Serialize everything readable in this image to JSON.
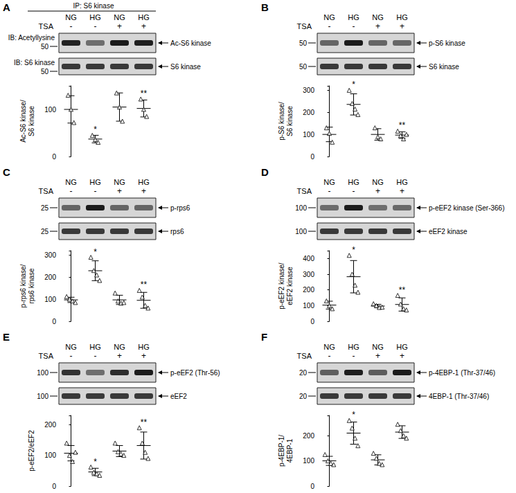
{
  "chart_data": [
    {
      "type": "scatter",
      "title": "A",
      "subtitle": "IP: S6 kinase",
      "categories": [
        "NG",
        "HG",
        "NG",
        "HG"
      ],
      "treatment": {
        "label": "TSA",
        "values": [
          "-",
          "-",
          "+",
          "+"
        ]
      },
      "blots": [
        {
          "label": "IB: Acetyllysine",
          "band": "Ac-S6 kinase",
          "mw": 50
        },
        {
          "label": "IB: S6 kinase",
          "band": "S6 kinase",
          "mw": 50
        }
      ],
      "y_label": "Ac-S6 kinase/\nS6 kinase",
      "values": [
        [
          130,
          100,
          72
        ],
        [
          45,
          36,
          30
        ],
        [
          135,
          105,
          75
        ],
        [
          122,
          100,
          85
        ]
      ],
      "mean": [
        100,
        37,
        105,
        102
      ],
      "sd": [
        29,
        8,
        30,
        18
      ],
      "ylim": [
        0,
        150
      ],
      "yticks": [
        0,
        100
      ],
      "tick_labels": "y",
      "marker": "triangle",
      "color": "#000000",
      "annotations": [
        {
          "category": 1,
          "text": "*"
        },
        {
          "category": 3,
          "text": "**"
        }
      ]
    },
    {
      "type": "scatter",
      "title": "B",
      "categories": [
        "NG",
        "HG",
        "NG",
        "HG"
      ],
      "treatment": {
        "label": "TSA",
        "values": [
          "-",
          "-",
          "+",
          "+"
        ]
      },
      "blots": [
        {
          "band": "p-S6 kinase",
          "mw": 50
        },
        {
          "band": "S6 kinase",
          "mw": 50
        }
      ],
      "y_label": "p-S6 kinase/\nS6 kinase",
      "values": [
        [
          130,
          105,
          65
        ],
        [
          300,
          240,
          215,
          190
        ],
        [
          130,
          90,
          80
        ],
        [
          115,
          95,
          80,
          100
        ]
      ],
      "mean": [
        100,
        236,
        100,
        97
      ],
      "sd": [
        33,
        48,
        26,
        15
      ],
      "ylim": [
        0,
        320
      ],
      "yticks": [
        0,
        100,
        200,
        300
      ],
      "tick_labels": "y",
      "marker": "triangle",
      "color": "#000000",
      "annotations": [
        {
          "category": 1,
          "text": "*"
        },
        {
          "category": 3,
          "text": "**"
        }
      ]
    },
    {
      "type": "scatter",
      "title": "C",
      "categories": [
        "NG",
        "HG",
        "NG",
        "HG"
      ],
      "treatment": {
        "label": "TSA",
        "values": [
          "-",
          "-",
          "+",
          "+"
        ]
      },
      "blots": [
        {
          "band": "p-rps6",
          "mw": 25
        },
        {
          "band": "rps6",
          "mw": 25
        }
      ],
      "y_label": "p-rps6 kinase/\nrps6 kinase",
      "values": [
        [
          112,
          100,
          92,
          85
        ],
        [
          290,
          230,
          210,
          185
        ],
        [
          128,
          92,
          82,
          85
        ],
        [
          140,
          110,
          72,
          60
        ]
      ],
      "mean": [
        97,
        229,
        97,
        95
      ],
      "sd": [
        12,
        45,
        21,
        36
      ],
      "ylim": [
        0,
        320
      ],
      "yticks": [
        0,
        100,
        200,
        300
      ],
      "tick_labels": "y",
      "marker": "triangle",
      "color": "#000000",
      "annotations": [
        {
          "category": 1,
          "text": "*"
        },
        {
          "category": 3,
          "text": "**"
        }
      ]
    },
    {
      "type": "scatter",
      "title": "D",
      "categories": [
        "NG",
        "HG",
        "NG",
        "HG"
      ],
      "treatment": {
        "label": "TSA",
        "values": [
          "-",
          "-",
          "+",
          "+"
        ]
      },
      "blots": [
        {
          "band": "p-eEF2 kinase (Ser-366)",
          "mw": 100
        },
        {
          "band": "eEF2 kinase",
          "mw": 100
        }
      ],
      "y_label": "p-eEF2 kinase/\neEF2 kinase",
      "values": [
        [
          130,
          100,
          80
        ],
        [
          420,
          300,
          230,
          185
        ],
        [
          112,
          100,
          88,
          90
        ],
        [
          165,
          110,
          80,
          72
        ]
      ],
      "mean": [
        103,
        284,
        97,
        107
      ],
      "sd": [
        25,
        103,
        11,
        42
      ],
      "ylim": [
        0,
        450
      ],
      "yticks": [
        0,
        100,
        200,
        300,
        400
      ],
      "tick_labels": "y",
      "marker": "triangle",
      "color": "#000000",
      "annotations": [
        {
          "category": 1,
          "text": "*"
        },
        {
          "category": 3,
          "text": "**"
        }
      ]
    },
    {
      "type": "scatter",
      "title": "E",
      "categories": [
        "NG",
        "HG",
        "NG",
        "HG"
      ],
      "treatment": {
        "label": "TSA",
        "values": [
          "-",
          "-",
          "+",
          "+"
        ]
      },
      "blots": [
        {
          "band": "p-eEF2 (Thr-56)",
          "mw": 100
        },
        {
          "band": "eEF2",
          "mw": 100
        }
      ],
      "y_label": "p-eEF2/eEF2",
      "values": [
        [
          140,
          100,
          80,
          110
        ],
        [
          62,
          45,
          40,
          35
        ],
        [
          140,
          112,
          105,
          100
        ],
        [
          190,
          140,
          110,
          90
        ]
      ],
      "mean": [
        107,
        46,
        114,
        132
      ],
      "sd": [
        25,
        12,
        18,
        44
      ],
      "ylim": [
        0,
        230
      ],
      "yticks": [
        0,
        100,
        200
      ],
      "tick_labels": "y",
      "marker": "triangle",
      "color": "#000000",
      "annotations": [
        {
          "category": 1,
          "text": "*"
        },
        {
          "category": 3,
          "text": "**"
        }
      ]
    },
    {
      "type": "scatter",
      "title": "F",
      "categories": [
        "NG",
        "HG",
        "NG",
        "HG"
      ],
      "treatment": {
        "label": "TSA",
        "values": [
          "-",
          "-",
          "+",
          "+"
        ]
      },
      "blots": [
        {
          "band": "p-4EBP-1 (Thr-37/46)",
          "mw": 20
        },
        {
          "band": "4EBP-1 (Thr-37/46)",
          "mw": 20
        }
      ],
      "y_label": "p-4EBP-1/\n4EBP-1",
      "values": [
        [
          125,
          100,
          90,
          85
        ],
        [
          260,
          230,
          190,
          160
        ],
        [
          130,
          110,
          90,
          85
        ],
        [
          245,
          220,
          200,
          190
        ]
      ],
      "mean": [
        100,
        210,
        104,
        214
      ],
      "sd": [
        18,
        44,
        20,
        25
      ],
      "ylim": [
        0,
        280
      ],
      "yticks": [
        0,
        100,
        200
      ],
      "tick_labels": "y",
      "marker": "triangle",
      "color": "#000000",
      "annotations": [
        {
          "category": 1,
          "text": "*"
        }
      ]
    }
  ]
}
